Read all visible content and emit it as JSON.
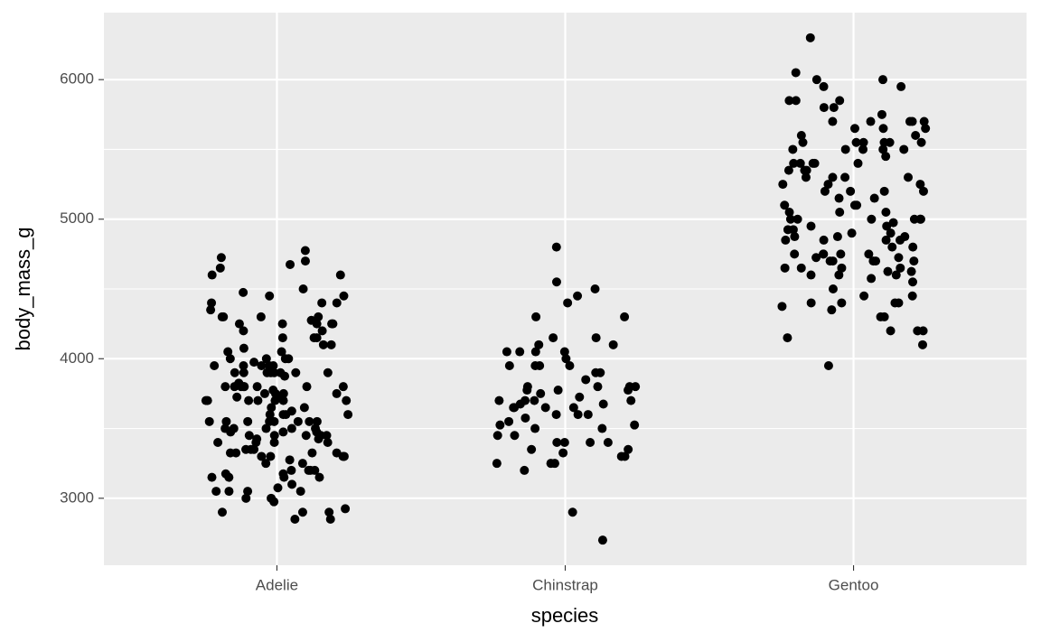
{
  "chart_data": {
    "type": "strip",
    "x_label": "species",
    "y_label": "body_mass_g",
    "categories": [
      "Adelie",
      "Chinstrap",
      "Gentoo"
    ],
    "color": "#000000",
    "ylim": [
      2520,
      6480
    ],
    "yticks": [
      3000,
      4000,
      5000,
      6000
    ],
    "minor_yticks": [
      3500,
      4500,
      5500
    ],
    "grid": true,
    "values": [
      [
        3750,
        3800,
        3250,
        3450,
        3650,
        3625,
        4675,
        3475,
        4250,
        3300,
        3700,
        3200,
        3800,
        4400,
        3700,
        3450,
        4500,
        3325,
        4200,
        3400,
        3600,
        3800,
        3950,
        3800,
        3800,
        3550,
        3200,
        3150,
        3950,
        3250,
        3900,
        3300,
        3900,
        3325,
        4150,
        3950,
        3550,
        3300,
        4650,
        3150,
        3900,
        3100,
        4400,
        3000,
        4600,
        3425,
        2975,
        3450,
        4150,
        3500,
        4300,
        3450,
        4050,
        2900,
        3700,
        3550,
        3800,
        2850,
        3750,
        3150,
        4400,
        3600,
        4050,
        2850,
        3950,
        3350,
        4100,
        3050,
        4450,
        3600,
        3900,
        3550,
        4150,
        3700,
        4250,
        3700,
        3900,
        3550,
        4000,
        3200,
        4700,
        3800,
        4200,
        3350,
        3550,
        3800,
        3500,
        3950,
        3600,
        3550,
        4300,
        3400,
        4450,
        3300,
        4300,
        3700,
        4350,
        2900,
        4100,
        3725,
        4725,
        3075,
        4250,
        2925,
        3550,
        3750,
        3900,
        3175,
        4775,
        3825,
        4600,
        3200,
        4275,
        3900,
        4075,
        2900,
        3775,
        3350,
        3325,
        3150,
        3500,
        3450,
        3875,
        3050,
        4000,
        3275,
        4300,
        3050,
        4000,
        3325,
        3500,
        3500,
        4475,
        3425,
        3900,
        3175,
        3975,
        3400,
        4250,
        3400,
        3475,
        3050,
        3725,
        3000,
        3650,
        4250,
        3475,
        3450,
        3750,
        3700,
        4000
      ],
      [
        3500,
        3900,
        3650,
        3525,
        3725,
        3950,
        3250,
        3750,
        4150,
        3700,
        3800,
        3775,
        3700,
        4050,
        3575,
        4050,
        3300,
        3700,
        3450,
        4400,
        3600,
        3400,
        2900,
        3800,
        3300,
        4150,
        3400,
        3800,
        3700,
        4550,
        3200,
        4300,
        3350,
        4100,
        3600,
        3900,
        3850,
        4800,
        2700,
        4500,
        3950,
        3650,
        3550,
        3500,
        3675,
        4450,
        3400,
        4300,
        3250,
        3675,
        3325,
        3950,
        3600,
        4050,
        3350,
        3450,
        3250,
        4050,
        3800,
        3525,
        3950,
        3650,
        3650,
        4000,
        3400,
        3775,
        4100,
        3775
      ],
      [
        4500,
        5700,
        4450,
        5700,
        5400,
        4550,
        4800,
        5200,
        4400,
        5150,
        4650,
        5550,
        4650,
        5850,
        4200,
        5850,
        4150,
        6300,
        4800,
        5350,
        5700,
        5000,
        4400,
        5050,
        5000,
        5100,
        4100,
        5650,
        4600,
        5550,
        5250,
        4700,
        5050,
        6050,
        5150,
        5400,
        4950,
        5250,
        4350,
        5350,
        3950,
        5700,
        4300,
        4750,
        5550,
        4900,
        4200,
        5400,
        5100,
        5300,
        4850,
        5300,
        4400,
        5000,
        4900,
        5050,
        4300,
        5000,
        4450,
        5550,
        4200,
        5300,
        4400,
        5650,
        4700,
        5700,
        4650,
        5800,
        4700,
        5550,
        4750,
        5000,
        5100,
        5200,
        4700,
        5800,
        4600,
        6000,
        4750,
        5950,
        4625,
        5450,
        4725,
        5350,
        4750,
        5600,
        4600,
        5300,
        4875,
        5550,
        4950,
        5400,
        4750,
        5650,
        4850,
        5200,
        4925,
        4875,
        4625,
        5250,
        4850,
        5600,
        4975,
        5500,
        4725,
        5500,
        4700,
        5500,
        4575,
        5500,
        5000,
        5950,
        4650,
        5500,
        4375,
        5850,
        4875,
        6000,
        4925,
        4850,
        5750,
        5200,
        5400
      ]
    ]
  }
}
